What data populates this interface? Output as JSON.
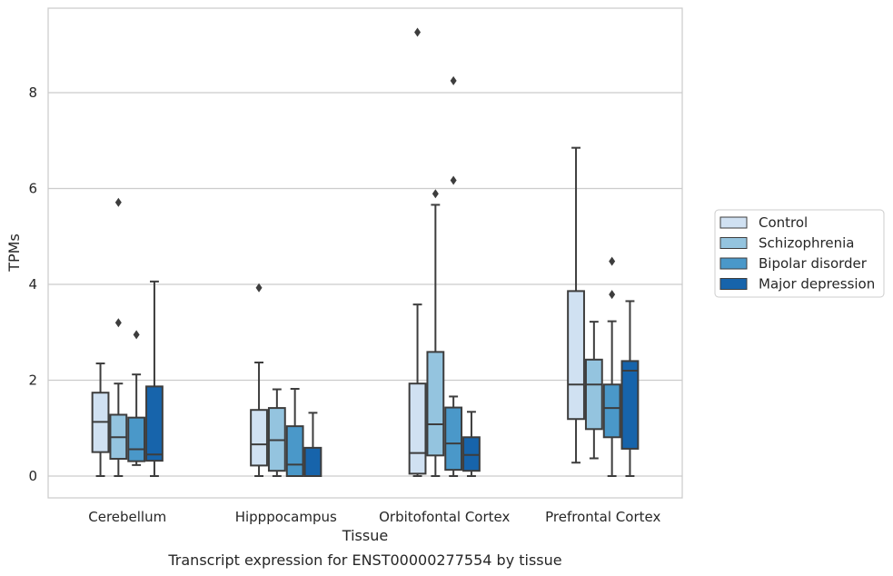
{
  "chart_data": {
    "type": "boxplot",
    "title": "",
    "caption": "Transcript expression for ENST00000277554 by tissue",
    "xlabel": "Tissue",
    "ylabel": "TPMs",
    "ylim": [
      -0.45,
      9.75
    ],
    "yticks": [
      0,
      2,
      4,
      6,
      8
    ],
    "grid": "y",
    "legend_position": "right",
    "categories": [
      "Cerebellum",
      "Hipppocampus",
      "Orbitofontal Cortex",
      "Prefrontal Cortex"
    ],
    "series": [
      {
        "name": "Control",
        "color": "#d0e1f2",
        "boxes": [
          {
            "whislo": 0.0,
            "q1": 0.5,
            "med": 1.13,
            "q3": 1.74,
            "whishi": 2.35,
            "fliers": []
          },
          {
            "whislo": 0.0,
            "q1": 0.22,
            "med": 0.66,
            "q3": 1.38,
            "whishi": 2.37,
            "fliers": [
              3.93
            ]
          },
          {
            "whislo": 0.0,
            "q1": 0.05,
            "med": 0.48,
            "q3": 1.93,
            "whishi": 3.58,
            "fliers": [
              9.26
            ]
          },
          {
            "whislo": 0.28,
            "q1": 1.19,
            "med": 1.91,
            "q3": 3.86,
            "whishi": 6.85,
            "fliers": []
          }
        ]
      },
      {
        "name": "Schizophrenia",
        "color": "#94c4df",
        "boxes": [
          {
            "whislo": 0.0,
            "q1": 0.36,
            "med": 0.81,
            "q3": 1.28,
            "whishi": 1.93,
            "fliers": [
              5.71,
              3.2
            ]
          },
          {
            "whislo": 0.0,
            "q1": 0.11,
            "med": 0.75,
            "q3": 1.42,
            "whishi": 1.81,
            "fliers": []
          },
          {
            "whislo": 0.0,
            "q1": 0.43,
            "med": 1.08,
            "q3": 2.59,
            "whishi": 5.66,
            "fliers": [
              5.89
            ]
          },
          {
            "whislo": 0.37,
            "q1": 0.98,
            "med": 1.91,
            "q3": 2.43,
            "whishi": 3.22,
            "fliers": []
          }
        ]
      },
      {
        "name": "Bipolar disorder",
        "color": "#4a98c9",
        "boxes": [
          {
            "whislo": 0.23,
            "q1": 0.31,
            "med": 0.56,
            "q3": 1.22,
            "whishi": 2.12,
            "fliers": [
              2.95
            ]
          },
          {
            "whislo": 0.0,
            "q1": 0.0,
            "med": 0.24,
            "q3": 1.04,
            "whishi": 1.82,
            "fliers": []
          },
          {
            "whislo": 0.0,
            "q1": 0.13,
            "med": 0.68,
            "q3": 1.43,
            "whishi": 1.66,
            "fliers": [
              8.25,
              6.17
            ]
          },
          {
            "whislo": 0.0,
            "q1": 0.81,
            "med": 1.42,
            "q3": 1.91,
            "whishi": 3.23,
            "fliers": [
              4.48,
              3.79
            ]
          }
        ]
      },
      {
        "name": "Major depression",
        "color": "#1764ab",
        "boxes": [
          {
            "whislo": 0.0,
            "q1": 0.32,
            "med": 0.45,
            "q3": 1.87,
            "whishi": 4.06,
            "fliers": []
          },
          {
            "whislo": 0.0,
            "q1": 0.0,
            "med": 0.0,
            "q3": 0.59,
            "whishi": 1.32,
            "fliers": []
          },
          {
            "whislo": 0.0,
            "q1": 0.11,
            "med": 0.44,
            "q3": 0.81,
            "whishi": 1.34,
            "fliers": []
          },
          {
            "whislo": 0.0,
            "q1": 0.57,
            "med": 2.2,
            "q3": 2.4,
            "whishi": 3.65,
            "fliers": []
          }
        ]
      }
    ]
  }
}
